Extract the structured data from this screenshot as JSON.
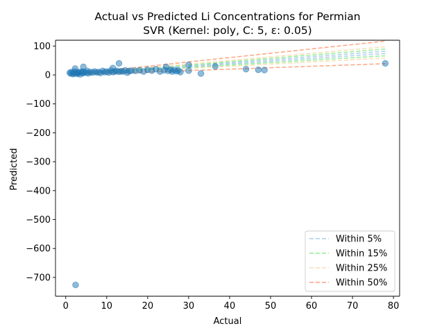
{
  "chart_data": {
    "type": "scatter",
    "title": "Actual vs Predicted Li Concentrations for Permian",
    "subtitle": "SVR (Kernel: poly, C: 5, ε: 0.05)",
    "xlabel": "Actual",
    "ylabel": "Predicted",
    "xlim": [
      -2.5,
      81.5
    ],
    "ylim": [
      -765,
      120
    ],
    "xticks": [
      0,
      10,
      20,
      30,
      40,
      50,
      60,
      70,
      80
    ],
    "yticks": [
      100,
      0,
      -100,
      -200,
      -300,
      -400,
      -500,
      -600,
      -700
    ],
    "xtick_labels": [
      "0",
      "10",
      "20",
      "30",
      "40",
      "50",
      "60",
      "70",
      "80"
    ],
    "ytick_labels": [
      "100",
      "0",
      "−100",
      "−200",
      "−300",
      "−400",
      "−500",
      "−600",
      "−700"
    ],
    "grid": false,
    "legend_position": "lower-right",
    "points": {
      "color": "#1f77b4",
      "x": [
        1.0,
        1.2,
        1.5,
        1.8,
        2.0,
        2.2,
        2.5,
        2.8,
        3.0,
        3.2,
        3.5,
        3.8,
        4.0,
        4.2,
        4.5,
        5.0,
        5.2,
        5.5,
        6.0,
        6.5,
        7.0,
        7.5,
        8.0,
        8.5,
        9.0,
        9.5,
        10.0,
        10.5,
        11.0,
        11.5,
        12.0,
        12.5,
        13.0,
        13.5,
        14.0,
        14.5,
        15.0,
        15.5,
        16.0,
        17.0,
        18.0,
        19.0,
        20.0,
        21.0,
        22.0,
        23.0,
        24.0,
        25.0,
        25.5,
        26.0,
        26.5,
        27.0,
        27.5,
        28.0,
        2.3,
        4.3,
        11.5,
        13.0,
        24.5,
        30.0,
        30.0,
        33.0,
        36.5,
        44.0,
        47.0,
        48.5,
        78.0,
        2.4
      ],
      "y": [
        8,
        5,
        10,
        3,
        6,
        12,
        8,
        4,
        7,
        10,
        2,
        9,
        12,
        6,
        10,
        8,
        14,
        6,
        10,
        8,
        12,
        9,
        10,
        7,
        14,
        10,
        12,
        8,
        15,
        10,
        12,
        14,
        11,
        13,
        12,
        16,
        8,
        13,
        15,
        14,
        16,
        12,
        18,
        15,
        20,
        12,
        16,
        14,
        18,
        12,
        17,
        13,
        15,
        10,
        22,
        28,
        24,
        40,
        28,
        35,
        15,
        5,
        30,
        20,
        18,
        17,
        40,
        -726
      ]
    },
    "series": [
      {
        "name": "Within 5%",
        "color": "#a6cee3",
        "x": [
          1,
          78
        ],
        "lower": [
          0.95,
          74.1
        ],
        "upper": [
          1.05,
          81.9
        ]
      },
      {
        "name": "Within 15%",
        "color": "#90ee90",
        "x": [
          1,
          78
        ],
        "lower": [
          0.85,
          66.3
        ],
        "upper": [
          1.15,
          89.7
        ]
      },
      {
        "name": "Within 25%",
        "color": "#f5deb3",
        "x": [
          1,
          78
        ],
        "lower": [
          0.75,
          58.5
        ],
        "upper": [
          1.25,
          97.5
        ]
      },
      {
        "name": "Within 50%",
        "color": "#ffa07a",
        "x": [
          1,
          78
        ],
        "lower": [
          0.5,
          39.0
        ],
        "upper": [
          1.5,
          117.0
        ]
      }
    ]
  }
}
